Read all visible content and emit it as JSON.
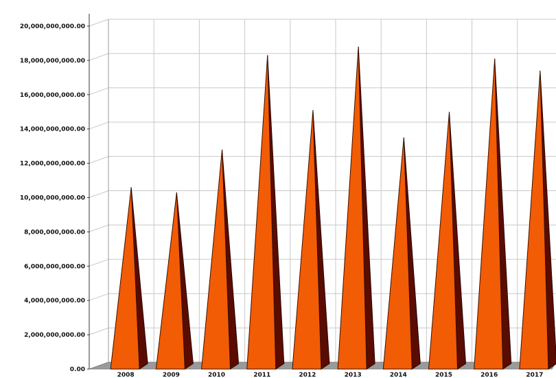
{
  "chart_data": {
    "type": "bar",
    "bar_shape": "pyramid",
    "categories": [
      "2008",
      "2009",
      "2010",
      "2011",
      "2012",
      "2013",
      "2014",
      "2015",
      "2016",
      "2017"
    ],
    "values": [
      10200000000,
      9900000000,
      12400000000,
      17900000000,
      14700000000,
      18400000000,
      13100000000,
      14600000000,
      17700000000,
      17000000000
    ],
    "ylim": [
      0,
      20000000000
    ],
    "yticks": [
      "0.00",
      "2,000,000,000.00",
      "4,000,000,000.00",
      "6,000,000,000.00",
      "8,000,000,000.00",
      "10,000,000,000.00",
      "12,000,000,000.00",
      "14,000,000,000.00",
      "16,000,000,000.00",
      "18,000,000,000.00",
      "20,000,000,000.00"
    ],
    "grid": true,
    "colors": {
      "front": "#f25c05",
      "side": "#5a0c00",
      "floor": "#9a9a9a",
      "grid": "#c8c8c8"
    }
  }
}
